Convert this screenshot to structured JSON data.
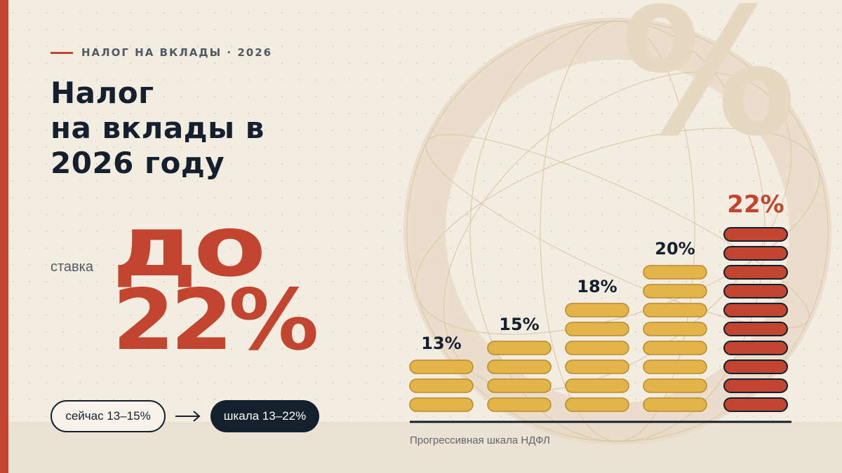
{
  "header": {
    "eyebrow": "НАЛОГ НА ВКЛАДЫ · 2026"
  },
  "title": {
    "line1": "Налог",
    "line2": "на вклады в",
    "line3": "2026 году"
  },
  "hero": {
    "label": "ставка",
    "prefix": "до",
    "value": "22%"
  },
  "pills": {
    "current": "сейчас 13–15%",
    "scale": "шкала 13–22%"
  },
  "decor": {
    "watermark": "%"
  },
  "colors": {
    "accent": "#c1452f",
    "dark": "#15202e",
    "coin": "#e3b44a",
    "coin_stroke": "#b98a2a",
    "background": "#f3ece1"
  },
  "chart_data": {
    "type": "bar",
    "categories": [
      "13%",
      "15%",
      "18%",
      "20%",
      "22%"
    ],
    "values": [
      13,
      15,
      18,
      20,
      22
    ],
    "stack_counts": [
      3,
      4,
      6,
      8,
      10
    ],
    "data_labels": [
      "13%",
      "15%",
      "18%",
      "20%",
      "22%"
    ],
    "highlight_index": 4,
    "caption": "Прогрессивная шкала НДФЛ",
    "title": "",
    "xlabel": "",
    "ylabel": ""
  }
}
